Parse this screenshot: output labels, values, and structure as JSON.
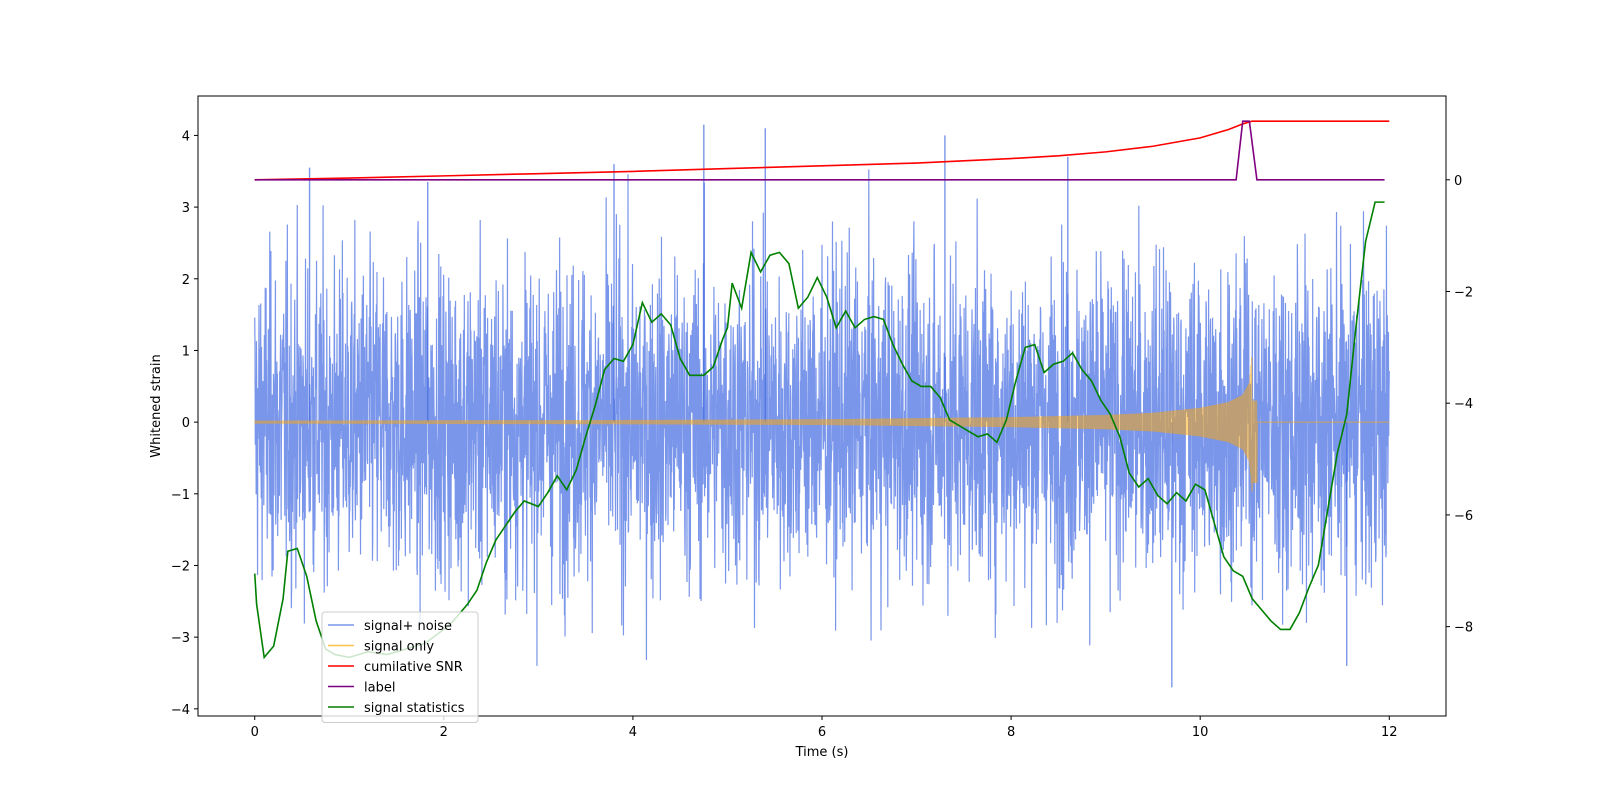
{
  "chart_data": {
    "type": "line",
    "title": "",
    "xlabel": "Time (s)",
    "ylabel": "Whitened strain",
    "y2label": "",
    "xlim": [
      -0.6,
      12.6
    ],
    "ylim": [
      -4.1,
      4.55
    ],
    "y2lim": [
      -9.6,
      1.5
    ],
    "x_ticks": [
      0,
      2,
      4,
      6,
      8,
      10,
      12
    ],
    "y_ticks": [
      -4,
      -3,
      -2,
      -1,
      0,
      1,
      2,
      3,
      4
    ],
    "y2_ticks": [
      -8,
      -6,
      -4,
      -2,
      0
    ],
    "grid": false,
    "legend": {
      "position": "lower-left",
      "entries": [
        {
          "name": "signal+ noise",
          "color": "#4169e1"
        },
        {
          "name": "signal only",
          "color": "#ffa500"
        },
        {
          "name": "cumilative SNR",
          "color": "#ff0000"
        },
        {
          "name": "label",
          "color": "#800080"
        },
        {
          "name": "signal statistics",
          "color": "#008000"
        }
      ]
    },
    "series": [
      {
        "name": "signal+ noise",
        "axis": "left",
        "color": "#4169e1",
        "opacity": 0.7,
        "x_range": [
          0,
          12
        ],
        "std": 1.1,
        "peak_max": 4.15,
        "peak_min": -3.7,
        "note_points": [
          [
            0.58,
            3.55
          ],
          [
            1.83,
            3.35
          ],
          [
            3.8,
            3.6
          ],
          [
            4.75,
            4.15
          ],
          [
            5.4,
            4.1
          ],
          [
            7.3,
            4.0
          ],
          [
            8.6,
            3.7
          ],
          [
            9.7,
            -3.7
          ],
          [
            11.55,
            -3.4
          ]
        ]
      },
      {
        "name": "signal only",
        "axis": "left",
        "color": "#ffa500",
        "opacity": 0.5,
        "x_range": [
          0,
          12
        ],
        "merger_time": 10.55,
        "envelope": [
          [
            0,
            0.02
          ],
          [
            2,
            0.025
          ],
          [
            4,
            0.03
          ],
          [
            6,
            0.04
          ],
          [
            8,
            0.07
          ],
          [
            9,
            0.1
          ],
          [
            9.5,
            0.13
          ],
          [
            10,
            0.2
          ],
          [
            10.3,
            0.28
          ],
          [
            10.45,
            0.38
          ],
          [
            10.52,
            0.55
          ],
          [
            10.55,
            1.0
          ]
        ]
      },
      {
        "name": "cumilative SNR",
        "axis": "right",
        "color": "#ff0000",
        "points": [
          [
            0,
            0.0
          ],
          [
            1,
            0.03
          ],
          [
            2,
            0.07
          ],
          [
            3,
            0.11
          ],
          [
            4,
            0.15
          ],
          [
            5,
            0.2
          ],
          [
            6,
            0.25
          ],
          [
            7,
            0.3
          ],
          [
            8,
            0.38
          ],
          [
            8.5,
            0.43
          ],
          [
            9,
            0.5
          ],
          [
            9.5,
            0.6
          ],
          [
            10,
            0.75
          ],
          [
            10.3,
            0.9
          ],
          [
            10.45,
            1.0
          ],
          [
            10.55,
            1.05
          ],
          [
            12,
            1.05
          ]
        ]
      },
      {
        "name": "label",
        "axis": "right",
        "color": "#800080",
        "points": [
          [
            0,
            0
          ],
          [
            10.38,
            0
          ],
          [
            10.45,
            1.05
          ],
          [
            10.52,
            1.05
          ],
          [
            10.6,
            0
          ],
          [
            11.95,
            0
          ]
        ]
      },
      {
        "name": "signal statistics",
        "axis": "right",
        "color": "#008000",
        "points": [
          [
            0,
            -7.05
          ],
          [
            0.02,
            -7.6
          ],
          [
            0.1,
            -8.55
          ],
          [
            0.2,
            -8.35
          ],
          [
            0.3,
            -7.5
          ],
          [
            0.35,
            -6.65
          ],
          [
            0.45,
            -6.6
          ],
          [
            0.55,
            -7.1
          ],
          [
            0.65,
            -7.9
          ],
          [
            0.75,
            -8.4
          ],
          [
            0.85,
            -8.5
          ],
          [
            1.0,
            -8.55
          ],
          [
            1.2,
            -8.45
          ],
          [
            1.4,
            -8.5
          ],
          [
            1.6,
            -8.4
          ],
          [
            1.8,
            -8.3
          ],
          [
            2.0,
            -8.05
          ],
          [
            2.1,
            -7.9
          ],
          [
            2.25,
            -7.6
          ],
          [
            2.35,
            -7.35
          ],
          [
            2.45,
            -6.85
          ],
          [
            2.55,
            -6.45
          ],
          [
            2.65,
            -6.2
          ],
          [
            2.75,
            -5.95
          ],
          [
            2.85,
            -5.75
          ],
          [
            3.0,
            -5.85
          ],
          [
            3.1,
            -5.6
          ],
          [
            3.2,
            -5.3
          ],
          [
            3.3,
            -5.55
          ],
          [
            3.4,
            -5.2
          ],
          [
            3.5,
            -4.6
          ],
          [
            3.6,
            -4.05
          ],
          [
            3.7,
            -3.4
          ],
          [
            3.8,
            -3.2
          ],
          [
            3.9,
            -3.25
          ],
          [
            4.0,
            -2.95
          ],
          [
            4.1,
            -2.2
          ],
          [
            4.2,
            -2.55
          ],
          [
            4.3,
            -2.4
          ],
          [
            4.4,
            -2.6
          ],
          [
            4.5,
            -3.2
          ],
          [
            4.6,
            -3.5
          ],
          [
            4.75,
            -3.5
          ],
          [
            4.85,
            -3.35
          ],
          [
            4.95,
            -2.85
          ],
          [
            5.0,
            -2.65
          ],
          [
            5.05,
            -1.85
          ],
          [
            5.15,
            -2.3
          ],
          [
            5.25,
            -1.3
          ],
          [
            5.35,
            -1.65
          ],
          [
            5.45,
            -1.35
          ],
          [
            5.55,
            -1.3
          ],
          [
            5.65,
            -1.5
          ],
          [
            5.75,
            -2.3
          ],
          [
            5.85,
            -2.1
          ],
          [
            5.95,
            -1.75
          ],
          [
            6.05,
            -2.1
          ],
          [
            6.15,
            -2.65
          ],
          [
            6.25,
            -2.35
          ],
          [
            6.35,
            -2.65
          ],
          [
            6.45,
            -2.5
          ],
          [
            6.55,
            -2.45
          ],
          [
            6.65,
            -2.5
          ],
          [
            6.75,
            -2.95
          ],
          [
            6.85,
            -3.3
          ],
          [
            6.95,
            -3.6
          ],
          [
            7.05,
            -3.7
          ],
          [
            7.15,
            -3.7
          ],
          [
            7.25,
            -3.9
          ],
          [
            7.35,
            -4.3
          ],
          [
            7.45,
            -4.4
          ],
          [
            7.55,
            -4.5
          ],
          [
            7.65,
            -4.6
          ],
          [
            7.75,
            -4.55
          ],
          [
            7.85,
            -4.7
          ],
          [
            7.95,
            -4.3
          ],
          [
            8.05,
            -3.6
          ],
          [
            8.15,
            -3.0
          ],
          [
            8.25,
            -2.95
          ],
          [
            8.35,
            -3.45
          ],
          [
            8.45,
            -3.3
          ],
          [
            8.55,
            -3.25
          ],
          [
            8.65,
            -3.1
          ],
          [
            8.75,
            -3.4
          ],
          [
            8.85,
            -3.6
          ],
          [
            8.95,
            -3.95
          ],
          [
            9.05,
            -4.2
          ],
          [
            9.15,
            -4.6
          ],
          [
            9.25,
            -5.25
          ],
          [
            9.35,
            -5.5
          ],
          [
            9.45,
            -5.35
          ],
          [
            9.55,
            -5.65
          ],
          [
            9.65,
            -5.8
          ],
          [
            9.75,
            -5.6
          ],
          [
            9.85,
            -5.75
          ],
          [
            9.95,
            -5.45
          ],
          [
            10.05,
            -5.55
          ],
          [
            10.15,
            -6.15
          ],
          [
            10.25,
            -6.75
          ],
          [
            10.35,
            -7.0
          ],
          [
            10.45,
            -7.1
          ],
          [
            10.55,
            -7.5
          ],
          [
            10.65,
            -7.7
          ],
          [
            10.75,
            -7.9
          ],
          [
            10.85,
            -8.05
          ],
          [
            10.95,
            -8.05
          ],
          [
            11.05,
            -7.75
          ],
          [
            11.15,
            -7.3
          ],
          [
            11.25,
            -6.9
          ],
          [
            11.35,
            -5.9
          ],
          [
            11.45,
            -4.9
          ],
          [
            11.55,
            -4.2
          ],
          [
            11.65,
            -2.6
          ],
          [
            11.75,
            -1.1
          ],
          [
            11.85,
            -0.4
          ],
          [
            11.95,
            -0.4
          ]
        ]
      }
    ]
  }
}
